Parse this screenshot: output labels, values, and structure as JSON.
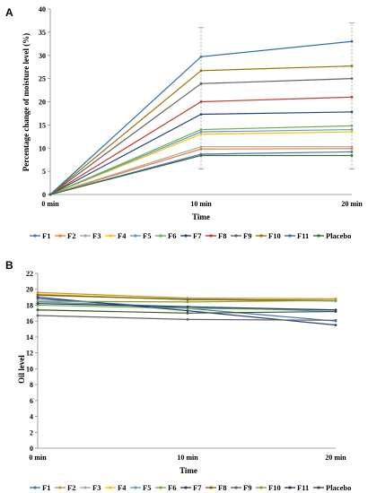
{
  "chart_data": [
    {
      "type": "line",
      "panel_label": "A",
      "categories": [
        "0 min",
        "10 min",
        "20 min"
      ],
      "xlabel": "Time",
      "ylabel": "Percentage change of moisture level (%)",
      "ylim": [
        0,
        40
      ],
      "yticks": [
        0,
        5,
        10,
        15,
        20,
        25,
        30,
        35,
        40
      ],
      "grid": false,
      "legend_position": "bottom",
      "error_bars": [
        {
          "category": "10 min",
          "low": 5.5,
          "high": 36
        },
        {
          "category": "20 min",
          "low": 5.5,
          "high": 37
        }
      ],
      "series": [
        {
          "name": "F1",
          "color": "#4472C4",
          "values": [
            0,
            8.7,
            9.2
          ]
        },
        {
          "name": "F2",
          "color": "#ED7D31",
          "values": [
            0,
            9.8,
            9.9
          ]
        },
        {
          "name": "F3",
          "color": "#A5A5A5",
          "values": [
            0,
            10.3,
            10.3
          ]
        },
        {
          "name": "F4",
          "color": "#FFC000",
          "values": [
            0,
            13.0,
            13.5
          ]
        },
        {
          "name": "F5",
          "color": "#5B9BD5",
          "values": [
            0,
            13.5,
            14.0
          ]
        },
        {
          "name": "F6",
          "color": "#70AD47",
          "values": [
            0,
            14.0,
            14.8
          ]
        },
        {
          "name": "F7",
          "color": "#264478",
          "values": [
            0,
            17.3,
            17.8
          ]
        },
        {
          "name": "F8",
          "color": "#C0392B",
          "values": [
            0,
            20.0,
            21.0
          ]
        },
        {
          "name": "F9",
          "color": "#636363",
          "values": [
            0,
            23.9,
            25.0
          ]
        },
        {
          "name": "F10",
          "color": "#997300",
          "values": [
            0,
            26.7,
            27.7
          ]
        },
        {
          "name": "F11",
          "color": "#2F6DAE",
          "values": [
            0,
            29.7,
            33.0
          ]
        },
        {
          "name": "Placebo",
          "color": "#3A6B35",
          "values": [
            0,
            8.4,
            8.4
          ]
        }
      ]
    },
    {
      "type": "line",
      "panel_label": "B",
      "categories": [
        "0 min",
        "10 min",
        "20 min"
      ],
      "xlabel": "Time",
      "ylabel": "Oil level",
      "ylim": [
        0,
        22
      ],
      "yticks": [
        0,
        2,
        4,
        6,
        8,
        10,
        12,
        14,
        16,
        18,
        20,
        22
      ],
      "grid": false,
      "legend_position": "bottom",
      "series": [
        {
          "name": "F1",
          "color": "#4472C4",
          "values": [
            18.8,
            17.6,
            16.0
          ]
        },
        {
          "name": "F2",
          "color": "#C29B2A",
          "values": [
            19.6,
            18.9,
            18.8
          ]
        },
        {
          "name": "F3",
          "color": "#A5A5A5",
          "values": [
            19.2,
            18.8,
            18.5
          ]
        },
        {
          "name": "F4",
          "color": "#FFC000",
          "values": [
            19.4,
            18.7,
            18.6
          ]
        },
        {
          "name": "F5",
          "color": "#5B9BD5",
          "values": [
            18.4,
            17.8,
            17.2
          ]
        },
        {
          "name": "F6",
          "color": "#70AD47",
          "values": [
            18.0,
            17.6,
            17.4
          ]
        },
        {
          "name": "F7",
          "color": "#264478",
          "values": [
            19.0,
            17.3,
            15.5
          ]
        },
        {
          "name": "F8",
          "color": "#7F6000",
          "values": [
            19.3,
            18.7,
            18.6
          ]
        },
        {
          "name": "F9",
          "color": "#636363",
          "values": [
            16.7,
            16.2,
            16.1
          ]
        },
        {
          "name": "F10",
          "color": "#8E9A2E",
          "values": [
            18.5,
            18.4,
            18.6
          ]
        },
        {
          "name": "F11",
          "color": "#1F3864",
          "values": [
            18.2,
            17.8,
            17.4
          ]
        },
        {
          "name": "Placebo",
          "color": "#375623",
          "values": [
            17.4,
            17.0,
            17.2
          ]
        }
      ]
    }
  ]
}
